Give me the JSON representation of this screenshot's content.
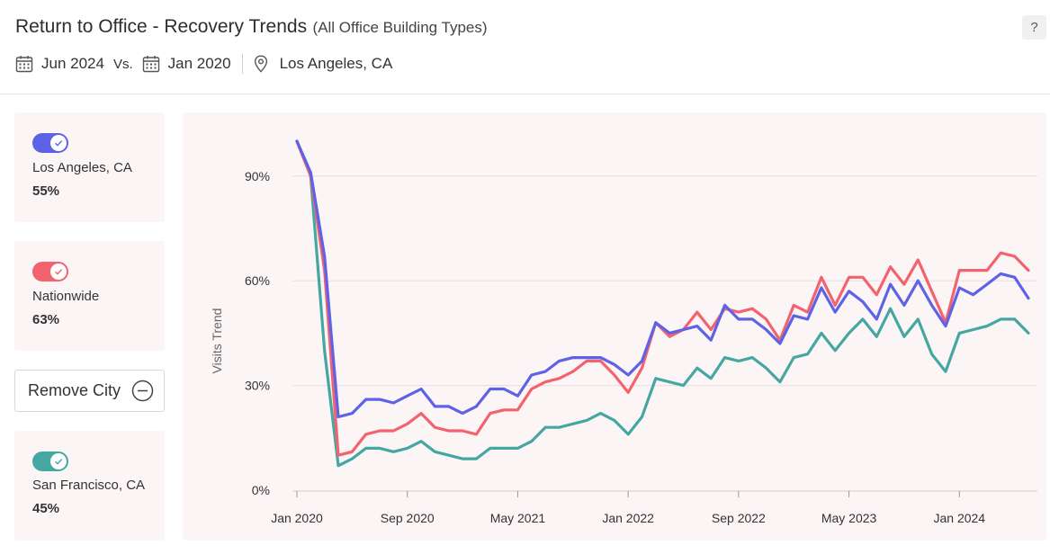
{
  "header": {
    "title": "Return to Office - Recovery Trends",
    "subtitle": "(All Office Building Types)",
    "help_label": "?",
    "date_current": "Jun 2024",
    "vs_label": "Vs.",
    "date_baseline": "Jan 2020",
    "location": "Los Angeles, CA"
  },
  "cards": [
    {
      "name": "Los Angeles, CA",
      "value": "55%",
      "color": "#5e63e6"
    },
    {
      "name": "Nationwide",
      "value": "63%",
      "color": "#f2636f"
    },
    {
      "name": "San Francisco, CA",
      "value": "45%",
      "color": "#46a7a2"
    }
  ],
  "remove_button": {
    "label": "Remove City"
  },
  "chart_data": {
    "type": "line",
    "ylabel": "Visits Trend",
    "ylim": [
      0,
      100
    ],
    "y_ticks": [
      0,
      30,
      60,
      90
    ],
    "y_tick_labels": [
      "0%",
      "30%",
      "60%",
      "90%"
    ],
    "x_tick_labels": [
      "Jan 2020",
      "Sep 2020",
      "May 2021",
      "Jan 2022",
      "Sep 2022",
      "May 2023",
      "Jan 2024"
    ],
    "x_tick_index": [
      0,
      8,
      16,
      24,
      32,
      40,
      48
    ],
    "x": [
      "Jan 2020",
      "Feb 2020",
      "Mar 2020",
      "Apr 2020",
      "May 2020",
      "Jun 2020",
      "Jul 2020",
      "Aug 2020",
      "Sep 2020",
      "Oct 2020",
      "Nov 2020",
      "Dec 2020",
      "Jan 2021",
      "Feb 2021",
      "Mar 2021",
      "Apr 2021",
      "May 2021",
      "Jun 2021",
      "Jul 2021",
      "Aug 2021",
      "Sep 2021",
      "Oct 2021",
      "Nov 2021",
      "Dec 2021",
      "Jan 2022",
      "Feb 2022",
      "Mar 2022",
      "Apr 2022",
      "May 2022",
      "Jun 2022",
      "Jul 2022",
      "Aug 2022",
      "Sep 2022",
      "Oct 2022",
      "Nov 2022",
      "Dec 2022",
      "Jan 2023",
      "Feb 2023",
      "Mar 2023",
      "Apr 2023",
      "May 2023",
      "Jun 2023",
      "Jul 2023",
      "Aug 2023",
      "Sep 2023",
      "Oct 2023",
      "Nov 2023",
      "Dec 2023",
      "Jan 2024",
      "Feb 2024",
      "Mar 2024",
      "Apr 2024",
      "May 2024",
      "Jun 2024"
    ],
    "series": [
      {
        "name": "Los Angeles, CA",
        "color": "#5e63e6",
        "values": [
          100,
          91,
          67,
          21,
          22,
          26,
          26,
          25,
          27,
          29,
          24,
          24,
          22,
          24,
          29,
          29,
          27,
          33,
          34,
          37,
          38,
          38,
          38,
          36,
          33,
          37,
          48,
          45,
          46,
          47,
          43,
          53,
          49,
          49,
          46,
          42,
          50,
          49,
          58,
          51,
          57,
          54,
          49,
          59,
          53,
          60,
          53,
          47,
          58,
          56,
          59,
          62,
          61,
          55
        ]
      },
      {
        "name": "Nationwide",
        "color": "#f2636f",
        "values": [
          100,
          90,
          63,
          10,
          11,
          16,
          17,
          17,
          19,
          22,
          18,
          17,
          17,
          16,
          22,
          23,
          23,
          29,
          31,
          32,
          34,
          37,
          37,
          33,
          28,
          35,
          48,
          44,
          46,
          51,
          46,
          52,
          51,
          52,
          49,
          43,
          53,
          51,
          61,
          53,
          61,
          61,
          56,
          64,
          59,
          66,
          57,
          48,
          63,
          63,
          63,
          68,
          67,
          63
        ]
      },
      {
        "name": "San Francisco, CA",
        "color": "#46a7a2",
        "values": [
          100,
          90,
          40,
          7,
          9,
          12,
          12,
          11,
          12,
          14,
          11,
          10,
          9,
          9,
          12,
          12,
          12,
          14,
          18,
          18,
          19,
          20,
          22,
          20,
          16,
          21,
          32,
          31,
          30,
          35,
          32,
          38,
          37,
          38,
          35,
          31,
          38,
          39,
          45,
          40,
          45,
          49,
          44,
          52,
          44,
          49,
          39,
          34,
          45,
          46,
          47,
          49,
          49,
          45
        ]
      }
    ]
  }
}
